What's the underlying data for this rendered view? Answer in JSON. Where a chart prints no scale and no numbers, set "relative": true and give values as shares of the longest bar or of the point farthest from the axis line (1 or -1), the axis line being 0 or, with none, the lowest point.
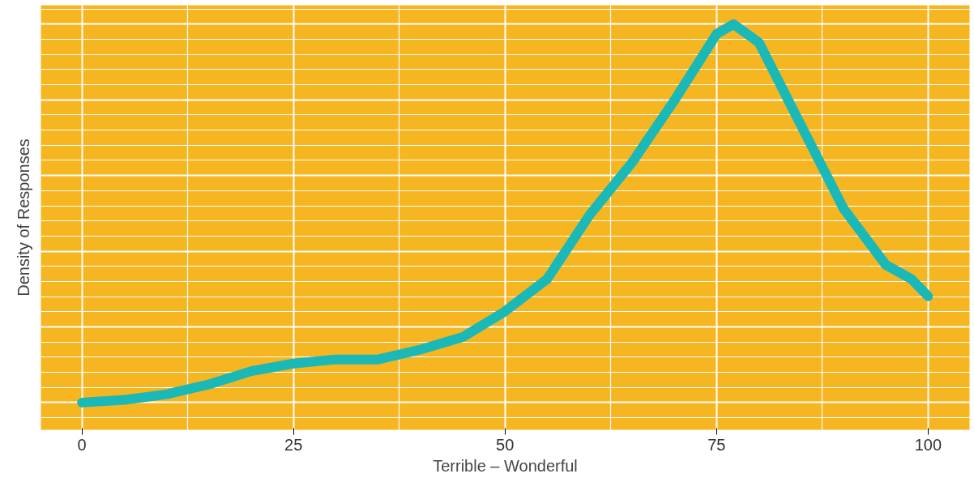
{
  "chart_data": {
    "type": "line",
    "relative": true,
    "xlabel": "Terrible – Wonderful",
    "ylabel": "Density of Responses",
    "xlim": [
      -4.85,
      104.9
    ],
    "xticks": [
      0,
      25,
      50,
      75,
      100
    ],
    "grid": true,
    "series": [
      {
        "color": "#1bb8b8",
        "x": [
          0,
          5,
          10,
          15,
          20,
          25,
          30,
          35,
          40,
          45,
          50,
          55,
          60,
          65,
          70,
          75,
          77,
          80,
          85,
          90,
          95,
          98,
          100
        ],
        "values": [
          0,
          0.007,
          0.022,
          0.048,
          0.083,
          0.103,
          0.114,
          0.114,
          0.14,
          0.173,
          0.241,
          0.327,
          0.496,
          0.634,
          0.798,
          0.974,
          1.0,
          0.952,
          0.732,
          0.513,
          0.364,
          0.327,
          0.281
        ]
      }
    ]
  }
}
